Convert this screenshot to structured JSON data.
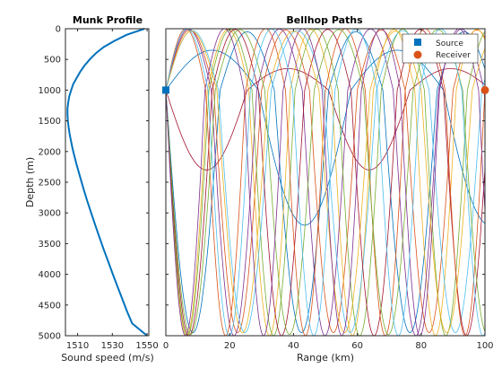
{
  "chart_data": [
    {
      "type": "line",
      "title": "Munk Profile",
      "xlabel": "Sound speed (m/s)",
      "ylabel": "Depth (m)",
      "xlim": [
        1503,
        1551
      ],
      "ylim": [
        0,
        5000
      ],
      "y_reversed": true,
      "x_ticks": [
        "1510",
        "1530",
        "1550"
      ],
      "x_tick_values": [
        1510,
        1530,
        1550
      ],
      "y_ticks": [
        "0",
        "500",
        "1000",
        "1500",
        "2000",
        "2500",
        "3000",
        "3500",
        "4000",
        "4500",
        "5000"
      ],
      "y_tick_values": [
        0,
        500,
        1000,
        1500,
        2000,
        2500,
        3000,
        3500,
        4000,
        4500,
        5000
      ],
      "series": [
        {
          "color": "#0072BD",
          "depth": [
            0,
            100,
            200,
            300,
            400,
            500,
            600,
            700,
            800,
            900,
            1000,
            1100,
            1200,
            1300,
            1400,
            1500,
            1600,
            1700,
            1800,
            1900,
            2000,
            2200,
            2400,
            2600,
            2800,
            3000,
            3200,
            3400,
            3600,
            3800,
            4000,
            4200,
            4400,
            4600,
            4800,
            5000
          ],
          "speed": [
            1548.5,
            1538.2,
            1531.0,
            1525.0,
            1520.5,
            1517.0,
            1514.0,
            1511.5,
            1509.5,
            1507.5,
            1506.3,
            1505.2,
            1504.6,
            1504.2,
            1504.2,
            1504.4,
            1504.8,
            1505.3,
            1506.0,
            1506.7,
            1507.5,
            1509.3,
            1511.3,
            1513.3,
            1515.5,
            1517.8,
            1520.2,
            1522.6,
            1525.1,
            1527.7,
            1530.3,
            1533.0,
            1535.7,
            1538.4,
            1541.4,
            1550.0
          ]
        }
      ]
    },
    {
      "type": "line",
      "title": "Bellhop Paths",
      "xlabel": "Range (km)",
      "ylabel": "",
      "xlim": [
        0,
        100
      ],
      "ylim": [
        0,
        5000
      ],
      "y_reversed": true,
      "x_ticks": [
        "0",
        "20",
        "40",
        "60",
        "80",
        "100"
      ],
      "x_tick_values": [
        0,
        20,
        40,
        60,
        80,
        100
      ],
      "legend": {
        "position": "top-right",
        "entries": [
          "Source",
          "Receiver"
        ]
      },
      "markers": [
        {
          "label": "Source",
          "x": 0,
          "y": 1000,
          "color": "#0072BD",
          "shape": "square"
        },
        {
          "label": "Receiver",
          "x": 100,
          "y": 1000,
          "color": "#D95319",
          "shape": "circle"
        }
      ],
      "rays": [
        {
          "color": "#A2142F",
          "period_km": 51,
          "amp_deep": 1300,
          "amp_shallow": 350
        },
        {
          "color": "#0072BD",
          "period_km": 58,
          "amp_deep": 2200,
          "amp_shallow": 650
        },
        {
          "color": "#0072BD",
          "period_km": 34,
          "amp_deep": 3950,
          "amp_shallow": 950
        },
        {
          "color": "#D95319",
          "period_km": 30,
          "amp_deep": 3950,
          "amp_shallow": 980
        },
        {
          "color": "#EDB120",
          "period_km": 26,
          "amp_deep": 4000,
          "amp_shallow": 990
        },
        {
          "color": "#7E2F8E",
          "period_km": 28.5,
          "amp_deep": 4000,
          "amp_shallow": 995
        },
        {
          "color": "#77AC30",
          "period_km": 27,
          "amp_deep": 4000,
          "amp_shallow": 995
        },
        {
          "color": "#4DBEEE",
          "period_km": 33,
          "amp_deep": 3950,
          "amp_shallow": 970
        },
        {
          "color": "#A2142F",
          "period_km": 29,
          "amp_deep": 4000,
          "amp_shallow": 990
        },
        {
          "color": "#D95319",
          "period_km": 25,
          "amp_deep": 4000,
          "amp_shallow": 1000
        },
        {
          "color": "#77AC30",
          "period_km": 31,
          "amp_deep": 3980,
          "amp_shallow": 985
        },
        {
          "color": "#EDB120",
          "period_km": 32,
          "amp_deep": 3950,
          "amp_shallow": 960
        },
        {
          "color": "#7E2F8E",
          "period_km": 24.5,
          "amp_deep": 4000,
          "amp_shallow": 1000
        },
        {
          "color": "#4DBEEE",
          "period_km": 26.5,
          "amp_deep": 4000,
          "amp_shallow": 995
        }
      ]
    }
  ]
}
